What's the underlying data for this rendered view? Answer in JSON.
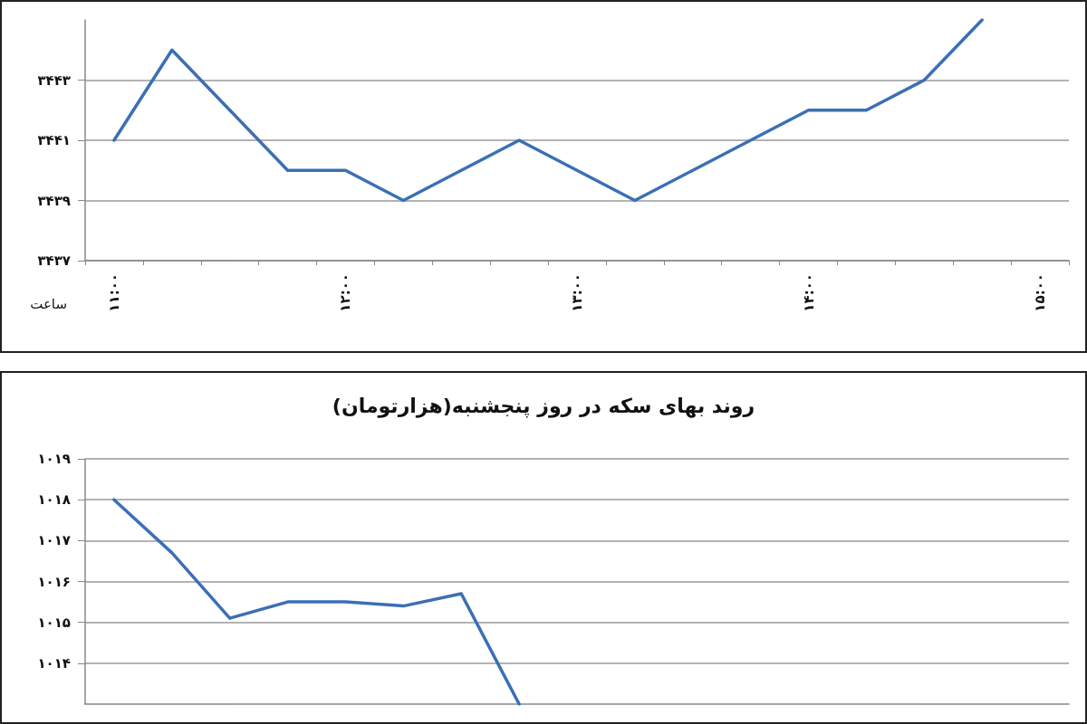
{
  "chart_data": [
    {
      "type": "line",
      "xlabel": "ساعت",
      "categories": [
        "۱۱:۰۰",
        null,
        null,
        null,
        "۱۲:۰۰",
        null,
        null,
        null,
        "۱۳:۰۰",
        null,
        null,
        null,
        "۱۴:۰۰",
        null,
        null,
        null,
        "۱۵:۰۰"
      ],
      "series": [
        {
          "color": "#3b6fb6",
          "values": [
            3441,
            3444,
            3442,
            3440,
            3440,
            3439,
            3440,
            3441,
            3440,
            3439,
            3440,
            3441,
            3442,
            3442,
            3443,
            3445,
            null
          ]
        }
      ],
      "ylim": [
        3437,
        3445
      ],
      "yticks": [
        {
          "value": 3437,
          "label": "۳۴۳۷"
        },
        {
          "value": 3439,
          "label": "۳۴۳۹"
        },
        {
          "value": 3441,
          "label": "۳۴۴۱"
        },
        {
          "value": 3443,
          "label": "۳۴۴۳"
        }
      ],
      "grid": "y",
      "marker": "none",
      "line_style": "solid"
    },
    {
      "type": "line",
      "title": "روند بهای سکه در روز پنجشنبه(هزارتومان)",
      "categories": [
        null,
        null,
        null,
        null,
        null,
        null,
        null,
        null,
        null,
        null,
        null,
        null,
        null,
        null,
        null,
        null,
        null
      ],
      "series": [
        {
          "color": "#3b6fb6",
          "values": [
            1018,
            1016.7,
            1015.1,
            1015.5,
            1015.5,
            1015.4,
            1015.7,
            1013,
            null,
            null,
            null,
            null,
            null,
            null,
            null,
            null,
            null
          ]
        }
      ],
      "ylim": [
        1013,
        1019
      ],
      "yticks": [
        {
          "value": 1014,
          "label": "۱۰۱۴"
        },
        {
          "value": 1015,
          "label": "۱۰۱۵"
        },
        {
          "value": 1016,
          "label": "۱۰۱۶"
        },
        {
          "value": 1017,
          "label": "۱۰۱۷"
        },
        {
          "value": 1018,
          "label": "۱۰۱۸"
        },
        {
          "value": 1019,
          "label": "۱۰۱۹"
        }
      ],
      "grid": "y",
      "marker": "none",
      "line_style": "solid",
      "tick_labels": "y"
    }
  ]
}
